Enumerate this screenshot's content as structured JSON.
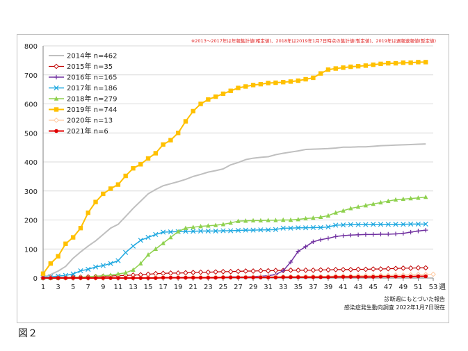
{
  "figure_label": "図２",
  "chart_data": {
    "type": "line",
    "note": "※2013～2017年は年報集計値(確定値)、2018年は2019年1月7日時点の集計値(暫定値)、2019年は週報速報値(暫定値)",
    "x_unit": "週",
    "xticks": [
      1,
      3,
      5,
      7,
      9,
      11,
      13,
      15,
      17,
      19,
      21,
      23,
      25,
      27,
      29,
      31,
      33,
      35,
      37,
      39,
      41,
      43,
      45,
      47,
      49,
      51,
      53
    ],
    "yticks": [
      0,
      100,
      200,
      300,
      400,
      500,
      600,
      700,
      800
    ],
    "xlim": [
      1,
      53
    ],
    "ylim": [
      0,
      800
    ],
    "grid": "horizontal",
    "legend_position": "top-left",
    "source_lines": [
      "診断週にもとづいた報告",
      "感染症発生動向調査 2022年1月7日現在"
    ],
    "series": [
      {
        "name": "2014年 n=462",
        "color": "#bfbfbf",
        "marker": "none",
        "width": 2,
        "values": [
          2,
          12,
          24,
          40,
          68,
          90,
          110,
          128,
          150,
          172,
          185,
          212,
          240,
          265,
          290,
          305,
          318,
          325,
          332,
          340,
          350,
          357,
          365,
          370,
          376,
          390,
          398,
          408,
          413,
          416,
          418,
          425,
          430,
          434,
          438,
          443,
          444,
          445,
          446,
          448,
          451,
          451,
          452,
          452,
          454,
          456,
          457,
          458,
          459,
          460,
          461,
          462
        ]
      },
      {
        "name": "2015年 n=35",
        "color": "#c00000",
        "marker": "diamond",
        "width": 1.2,
        "values": [
          1,
          1,
          2,
          2,
          3,
          3,
          4,
          5,
          6,
          7,
          8,
          9,
          10,
          11,
          13,
          15,
          16,
          17,
          17,
          18,
          19,
          20,
          20,
          21,
          22,
          22,
          23,
          24,
          24,
          25,
          25,
          26,
          26,
          27,
          27,
          27,
          27,
          28,
          28,
          29,
          29,
          29,
          30,
          30,
          31,
          31,
          32,
          33,
          34,
          34,
          35,
          35
        ]
      },
      {
        "name": "2016年 n=165",
        "color": "#7030a0",
        "marker": "plus",
        "width": 1.5,
        "values": [
          0,
          0,
          0,
          0,
          0,
          0,
          0,
          1,
          1,
          1,
          1,
          1,
          1,
          1,
          1,
          1,
          2,
          2,
          2,
          2,
          3,
          3,
          3,
          3,
          3,
          4,
          4,
          4,
          5,
          6,
          8,
          12,
          25,
          55,
          92,
          108,
          125,
          132,
          137,
          143,
          146,
          148,
          149,
          150,
          150,
          151,
          151,
          152,
          154,
          158,
          162,
          165
        ]
      },
      {
        "name": "2017年 n=186",
        "color": "#1fa8e0",
        "marker": "x",
        "width": 1.5,
        "values": [
          2,
          4,
          7,
          9,
          14,
          25,
          30,
          38,
          43,
          50,
          60,
          88,
          110,
          130,
          140,
          150,
          158,
          159,
          160,
          161,
          161,
          162,
          162,
          162,
          163,
          163,
          164,
          165,
          165,
          166,
          166,
          167,
          172,
          172,
          173,
          173,
          174,
          174,
          176,
          182,
          183,
          184,
          184,
          184,
          185,
          185,
          185,
          185,
          185,
          186,
          186,
          186
        ]
      },
      {
        "name": "2018年 n=279",
        "color": "#8fd14f",
        "marker": "triangle",
        "width": 1.5,
        "values": [
          0,
          0,
          0,
          1,
          2,
          3,
          4,
          6,
          8,
          10,
          14,
          18,
          28,
          50,
          80,
          100,
          120,
          140,
          160,
          172,
          175,
          178,
          180,
          182,
          185,
          190,
          196,
          197,
          198,
          198,
          199,
          199,
          200,
          200,
          202,
          205,
          207,
          210,
          215,
          225,
          232,
          240,
          245,
          250,
          255,
          260,
          265,
          270,
          272,
          274,
          276,
          279
        ]
      },
      {
        "name": "2019年 n=744",
        "color": "#ffc000",
        "marker": "square",
        "width": 2,
        "values": [
          15,
          50,
          75,
          118,
          140,
          172,
          225,
          262,
          290,
          308,
          322,
          352,
          378,
          392,
          412,
          430,
          460,
          475,
          500,
          540,
          575,
          600,
          615,
          625,
          635,
          645,
          655,
          660,
          665,
          668,
          672,
          673,
          675,
          677,
          680,
          685,
          690,
          705,
          718,
          722,
          725,
          728,
          730,
          732,
          735,
          738,
          740,
          740,
          742,
          742,
          744,
          744
        ]
      },
      {
        "name": "2020年 n=13",
        "color": "#ffc9a0",
        "marker": "diamond",
        "width": 1.2,
        "values": [
          0,
          0,
          0,
          0,
          0,
          0,
          0,
          0,
          0,
          1,
          1,
          1,
          1,
          1,
          2,
          2,
          2,
          2,
          2,
          2,
          3,
          3,
          3,
          3,
          3,
          3,
          4,
          4,
          4,
          4,
          4,
          5,
          5,
          5,
          5,
          6,
          6,
          6,
          6,
          7,
          7,
          7,
          8,
          8,
          8,
          9,
          9,
          10,
          10,
          11,
          12,
          12,
          13
        ]
      },
      {
        "name": "2021年 n=6",
        "color": "#e00000",
        "marker": "circle",
        "width": 2,
        "values": [
          0,
          0,
          0,
          0,
          0,
          0,
          0,
          0,
          0,
          0,
          0,
          0,
          0,
          0,
          0,
          0,
          1,
          1,
          1,
          1,
          1,
          1,
          1,
          1,
          2,
          2,
          2,
          2,
          2,
          2,
          2,
          2,
          3,
          3,
          3,
          3,
          3,
          3,
          3,
          4,
          4,
          4,
          4,
          4,
          4,
          5,
          5,
          5,
          5,
          5,
          6,
          6
        ]
      }
    ]
  }
}
